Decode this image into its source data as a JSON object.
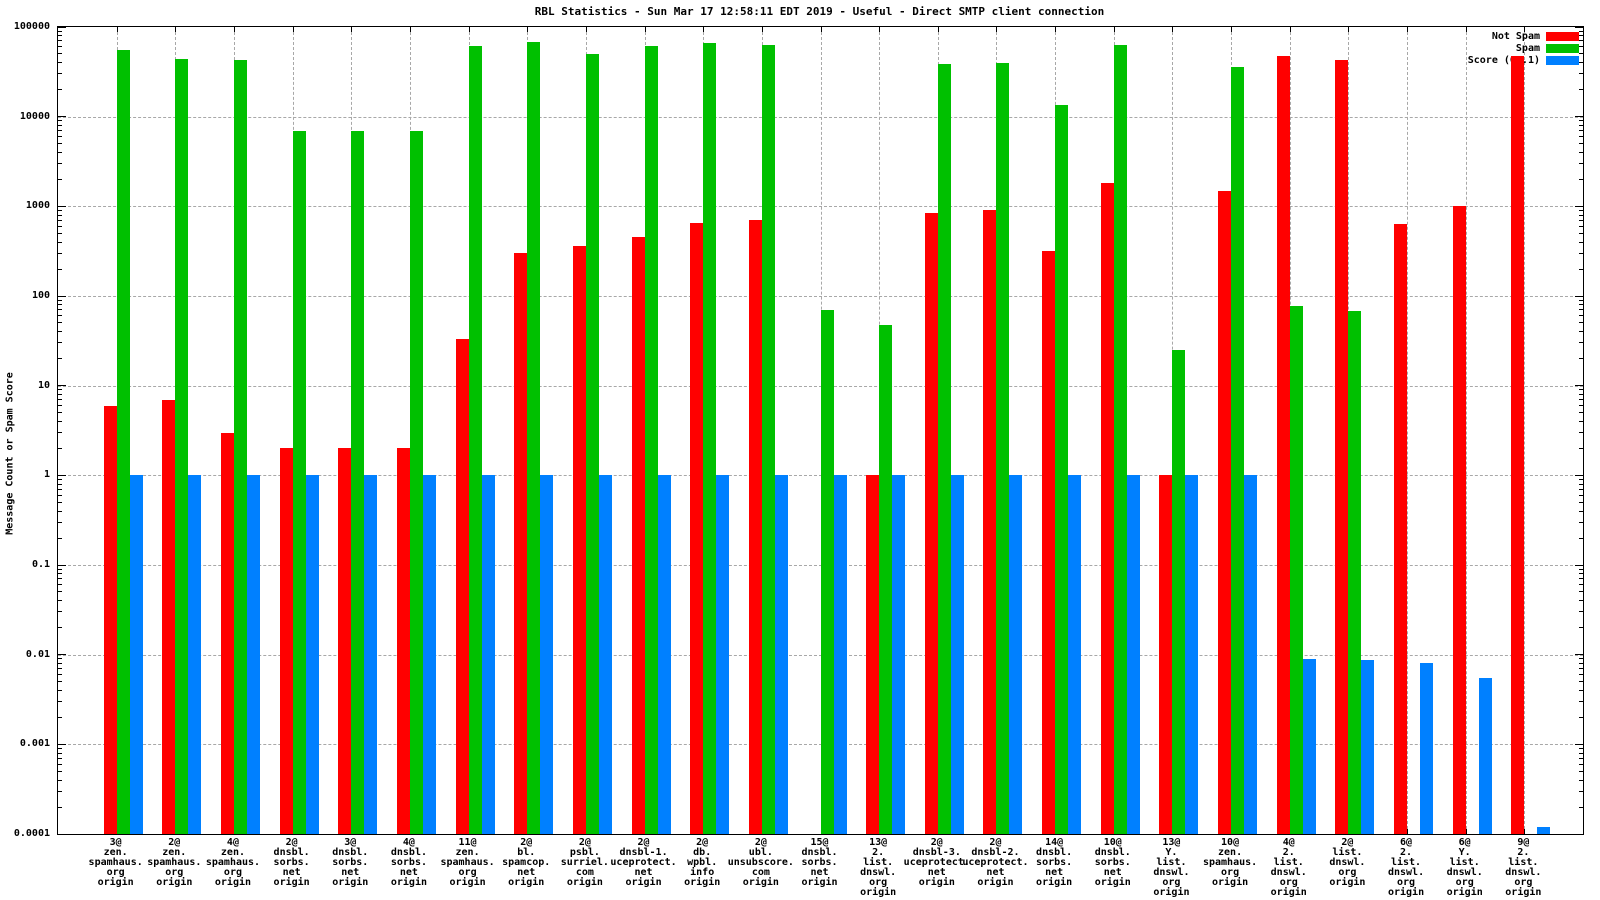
{
  "chart_data": {
    "type": "bar",
    "title": "RBL Statistics - Sun Mar 17 12:58:11 EDT 2019 - Useful - Direct SMTP client connection",
    "ylabel": "Message Count or Spam Score",
    "yscale": "log",
    "ylim": [
      0.0001,
      100000
    ],
    "ytick_labels": [
      "100000",
      "10000",
      "1000",
      "100",
      "10",
      "1",
      "0.1",
      "0.01",
      "0.001",
      "0.0001"
    ],
    "grid": true,
    "legend_position": "top-right-inside",
    "categories": [
      [
        "3@",
        "zen.",
        "spamhaus.",
        "org",
        "origin"
      ],
      [
        "2@",
        "zen.",
        "spamhaus.",
        "org",
        "origin"
      ],
      [
        "4@",
        "zen.",
        "spamhaus.",
        "org",
        "origin"
      ],
      [
        "2@",
        "dnsbl.",
        "sorbs.",
        "net",
        "origin"
      ],
      [
        "3@",
        "dnsbl.",
        "sorbs.",
        "net",
        "origin"
      ],
      [
        "4@",
        "dnsbl.",
        "sorbs.",
        "net",
        "origin"
      ],
      [
        "11@",
        "zen.",
        "spamhaus.",
        "org",
        "origin"
      ],
      [
        "2@",
        "bl.",
        "spamcop.",
        "net",
        "origin"
      ],
      [
        "2@",
        "psbl.",
        "surriel.",
        "com",
        "origin"
      ],
      [
        "2@",
        "dnsbl-1.",
        "uceprotect.",
        "net",
        "origin"
      ],
      [
        "2@",
        "db.",
        "wpbl.",
        "info",
        "origin"
      ],
      [
        "2@",
        "ubl.",
        "unsubscore.",
        "com",
        "origin"
      ],
      [
        "15@",
        "dnsbl.",
        "sorbs.",
        "net",
        "origin"
      ],
      [
        "13@",
        "2.",
        "list.",
        "dnswl.",
        "org",
        "origin"
      ],
      [
        "2@",
        "dnsbl-3.",
        "uceprotect.",
        "net",
        "origin"
      ],
      [
        "2@",
        "dnsbl-2.",
        "uceprotect.",
        "net",
        "origin"
      ],
      [
        "14@",
        "dnsbl.",
        "sorbs.",
        "net",
        "origin"
      ],
      [
        "10@",
        "dnsbl.",
        "sorbs.",
        "net",
        "origin"
      ],
      [
        "13@",
        "Y.",
        "list.",
        "dnswl.",
        "org",
        "origin"
      ],
      [
        "10@",
        "zen.",
        "spamhaus.",
        "org",
        "origin"
      ],
      [
        "4@",
        "2.",
        "list.",
        "dnswl.",
        "org",
        "origin"
      ],
      [
        "2@",
        "list.",
        "dnswl.",
        "org",
        "origin"
      ],
      [
        "6@",
        "2.",
        "list.",
        "dnswl.",
        "org",
        "origin"
      ],
      [
        "6@",
        "Y.",
        "list.",
        "dnswl.",
        "org",
        "origin"
      ],
      [
        "9@",
        "2.",
        "list.",
        "dnswl.",
        "org",
        "origin"
      ]
    ],
    "series": [
      {
        "name": "Not Spam",
        "color": "#ff0000",
        "values": [
          6,
          7,
          3,
          2,
          2,
          2,
          33,
          300,
          360,
          450,
          650,
          700,
          null,
          1,
          850,
          920,
          320,
          1800,
          1,
          1500,
          48000,
          43000,
          640,
          1000,
          48000
        ]
      },
      {
        "name": "Spam",
        "color": "#00c000",
        "values": [
          55000,
          44000,
          43000,
          7000,
          7000,
          7000,
          62000,
          68000,
          50000,
          61000,
          66000,
          63000,
          70,
          48,
          39000,
          40000,
          13500,
          63000,
          25,
          36000,
          78,
          68,
          null,
          null,
          null
        ]
      },
      {
        "name": "Score (0..1)",
        "color": "#0080ff",
        "values": [
          1,
          1,
          1,
          1,
          1,
          1,
          1,
          1,
          1,
          1,
          1,
          1,
          1,
          1,
          1,
          1,
          1,
          1,
          1,
          1,
          0.009,
          0.0088,
          0.008,
          0.0055,
          0.00012
        ]
      }
    ]
  },
  "colors": {
    "border": "#000000",
    "gridline": "#a8a8a8",
    "background": "#ffffff"
  }
}
